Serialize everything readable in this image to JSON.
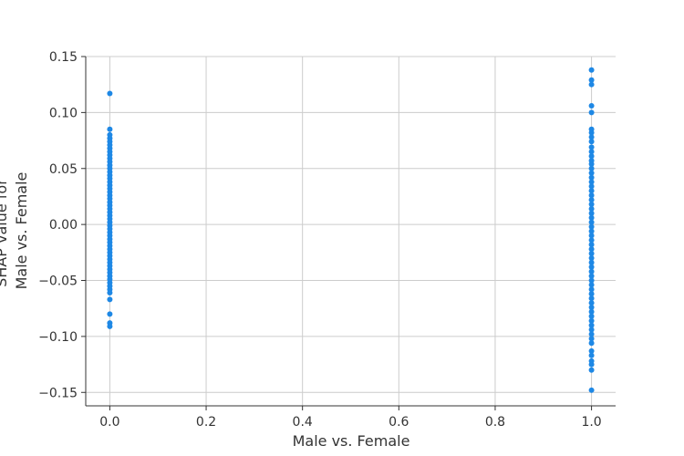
{
  "chart_data": {
    "type": "scatter",
    "title": "",
    "xlabel": "Male vs. Female",
    "ylabel_lines": [
      "SHAP value for",
      "Male vs. Female"
    ],
    "xlim": [
      -0.05,
      1.05
    ],
    "ylim": [
      -0.162,
      0.15
    ],
    "xticks": [
      0.0,
      0.2,
      0.4,
      0.6,
      0.8,
      1.0
    ],
    "xtick_labels": [
      "0.0",
      "0.2",
      "0.4",
      "0.6",
      "0.8",
      "1.0"
    ],
    "yticks": [
      -0.15,
      -0.1,
      -0.05,
      0.0,
      0.05,
      0.1,
      0.15
    ],
    "ytick_labels": [
      "−0.15",
      "−0.10",
      "−0.05",
      "0.00",
      "0.05",
      "0.10",
      "0.15"
    ],
    "grid": true,
    "point_color": "#1e88e5",
    "series": [
      {
        "values": [
          {
            "x": 0,
            "y": 0.117
          },
          {
            "x": 0,
            "y": 0.085
          },
          {
            "x": 0,
            "y": 0.08
          },
          {
            "x": 0,
            "y": 0.077
          },
          {
            "x": 0,
            "y": 0.074
          },
          {
            "x": 0,
            "y": 0.071
          },
          {
            "x": 0,
            "y": 0.068
          },
          {
            "x": 0,
            "y": 0.065
          },
          {
            "x": 0,
            "y": 0.062
          },
          {
            "x": 0,
            "y": 0.059
          },
          {
            "x": 0,
            "y": 0.056
          },
          {
            "x": 0,
            "y": 0.053
          },
          {
            "x": 0,
            "y": 0.05
          },
          {
            "x": 0,
            "y": 0.047
          },
          {
            "x": 0,
            "y": 0.044
          },
          {
            "x": 0,
            "y": 0.041
          },
          {
            "x": 0,
            "y": 0.038
          },
          {
            "x": 0,
            "y": 0.035
          },
          {
            "x": 0,
            "y": 0.032
          },
          {
            "x": 0,
            "y": 0.029
          },
          {
            "x": 0,
            "y": 0.026
          },
          {
            "x": 0,
            "y": 0.023
          },
          {
            "x": 0,
            "y": 0.02
          },
          {
            "x": 0,
            "y": 0.017
          },
          {
            "x": 0,
            "y": 0.014
          },
          {
            "x": 0,
            "y": 0.011
          },
          {
            "x": 0,
            "y": 0.008
          },
          {
            "x": 0,
            "y": 0.005
          },
          {
            "x": 0,
            "y": 0.002
          },
          {
            "x": 0,
            "y": -0.001
          },
          {
            "x": 0,
            "y": -0.004
          },
          {
            "x": 0,
            "y": -0.007
          },
          {
            "x": 0,
            "y": -0.01
          },
          {
            "x": 0,
            "y": -0.013
          },
          {
            "x": 0,
            "y": -0.016
          },
          {
            "x": 0,
            "y": -0.019
          },
          {
            "x": 0,
            "y": -0.022
          },
          {
            "x": 0,
            "y": -0.025
          },
          {
            "x": 0,
            "y": -0.028
          },
          {
            "x": 0,
            "y": -0.031
          },
          {
            "x": 0,
            "y": -0.034
          },
          {
            "x": 0,
            "y": -0.037
          },
          {
            "x": 0,
            "y": -0.04
          },
          {
            "x": 0,
            "y": -0.043
          },
          {
            "x": 0,
            "y": -0.046
          },
          {
            "x": 0,
            "y": -0.049
          },
          {
            "x": 0,
            "y": -0.052
          },
          {
            "x": 0,
            "y": -0.055
          },
          {
            "x": 0,
            "y": -0.058
          },
          {
            "x": 0,
            "y": -0.061
          },
          {
            "x": 0,
            "y": -0.067
          },
          {
            "x": 0,
            "y": -0.08
          },
          {
            "x": 0,
            "y": -0.088
          },
          {
            "x": 0,
            "y": -0.091
          },
          {
            "x": 1,
            "y": 0.138
          },
          {
            "x": 1,
            "y": 0.129
          },
          {
            "x": 1,
            "y": 0.125
          },
          {
            "x": 1,
            "y": 0.106
          },
          {
            "x": 1,
            "y": 0.1
          },
          {
            "x": 1,
            "y": 0.085
          },
          {
            "x": 1,
            "y": 0.082
          },
          {
            "x": 1,
            "y": 0.078
          },
          {
            "x": 1,
            "y": 0.074
          },
          {
            "x": 1,
            "y": 0.069
          },
          {
            "x": 1,
            "y": 0.065
          },
          {
            "x": 1,
            "y": 0.061
          },
          {
            "x": 1,
            "y": 0.057
          },
          {
            "x": 1,
            "y": 0.054
          },
          {
            "x": 1,
            "y": 0.05
          },
          {
            "x": 1,
            "y": 0.046
          },
          {
            "x": 1,
            "y": 0.042
          },
          {
            "x": 1,
            "y": 0.038
          },
          {
            "x": 1,
            "y": 0.034
          },
          {
            "x": 1,
            "y": 0.03
          },
          {
            "x": 1,
            "y": 0.026
          },
          {
            "x": 1,
            "y": 0.022
          },
          {
            "x": 1,
            "y": 0.018
          },
          {
            "x": 1,
            "y": 0.014
          },
          {
            "x": 1,
            "y": 0.01
          },
          {
            "x": 1,
            "y": 0.006
          },
          {
            "x": 1,
            "y": 0.002
          },
          {
            "x": 1,
            "y": -0.002
          },
          {
            "x": 1,
            "y": -0.006
          },
          {
            "x": 1,
            "y": -0.01
          },
          {
            "x": 1,
            "y": -0.014
          },
          {
            "x": 1,
            "y": -0.018
          },
          {
            "x": 1,
            "y": -0.022
          },
          {
            "x": 1,
            "y": -0.026
          },
          {
            "x": 1,
            "y": -0.03
          },
          {
            "x": 1,
            "y": -0.034
          },
          {
            "x": 1,
            "y": -0.038
          },
          {
            "x": 1,
            "y": -0.042
          },
          {
            "x": 1,
            "y": -0.046
          },
          {
            "x": 1,
            "y": -0.05
          },
          {
            "x": 1,
            "y": -0.054
          },
          {
            "x": 1,
            "y": -0.058
          },
          {
            "x": 1,
            "y": -0.062
          },
          {
            "x": 1,
            "y": -0.066
          },
          {
            "x": 1,
            "y": -0.07
          },
          {
            "x": 1,
            "y": -0.074
          },
          {
            "x": 1,
            "y": -0.078
          },
          {
            "x": 1,
            "y": -0.082
          },
          {
            "x": 1,
            "y": -0.086
          },
          {
            "x": 1,
            "y": -0.09
          },
          {
            "x": 1,
            "y": -0.094
          },
          {
            "x": 1,
            "y": -0.098
          },
          {
            "x": 1,
            "y": -0.102
          },
          {
            "x": 1,
            "y": -0.106
          },
          {
            "x": 1,
            "y": -0.113
          },
          {
            "x": 1,
            "y": -0.117
          },
          {
            "x": 1,
            "y": -0.122
          },
          {
            "x": 1,
            "y": -0.125
          },
          {
            "x": 1,
            "y": -0.13
          },
          {
            "x": 1,
            "y": -0.148
          }
        ]
      }
    ]
  }
}
